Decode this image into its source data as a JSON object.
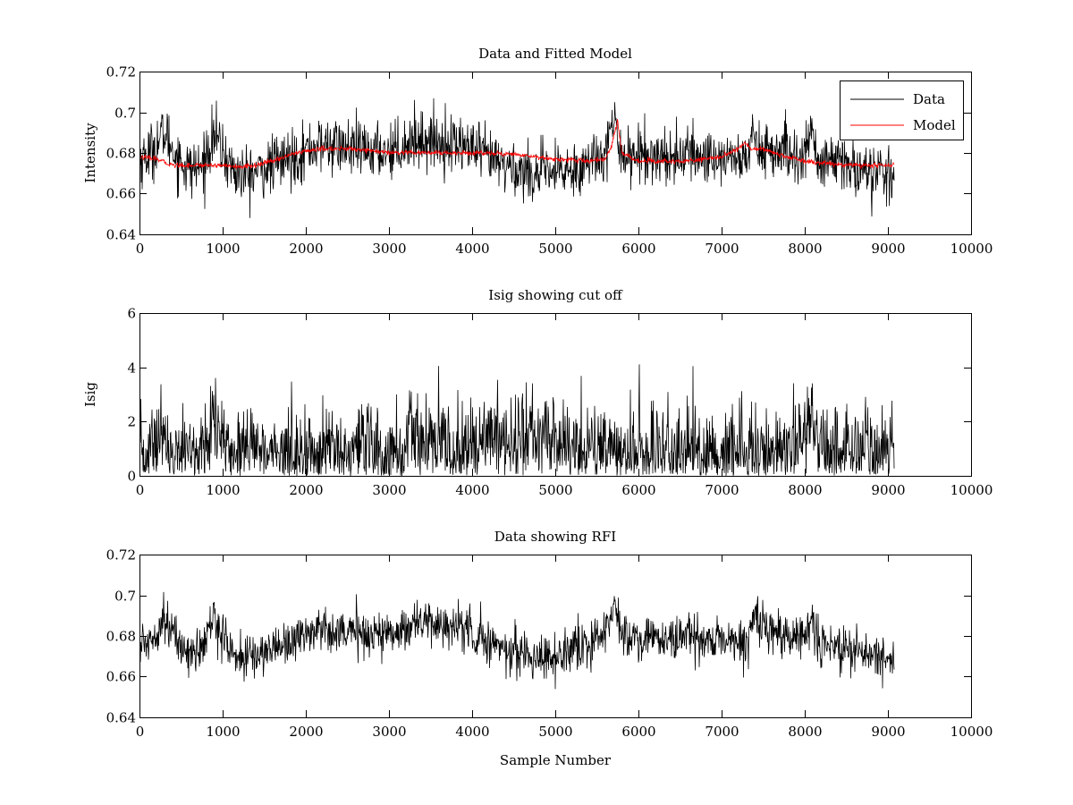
{
  "chart_data": [
    {
      "type": "line",
      "title": "Data and Fitted Model",
      "xlabel": "",
      "ylabel": "Intensity",
      "xlim": [
        0,
        10000
      ],
      "ylim": [
        0.64,
        0.72
      ],
      "xticks": [
        "0",
        "1000",
        "2000",
        "3000",
        "4000",
        "5000",
        "6000",
        "7000",
        "8000",
        "9000",
        "10000"
      ],
      "yticks": [
        "0.64",
        "0.66",
        "0.68",
        "0.7",
        "0.72"
      ],
      "grid": false,
      "legend": {
        "position": "top-right",
        "entries": [
          "Data",
          "Model"
        ]
      },
      "series": [
        {
          "name": "Data",
          "color": "#000000",
          "noise": 0.007,
          "x": [
            0,
            150,
            300,
            450,
            600,
            750,
            900,
            1000,
            1150,
            1300,
            1500,
            1700,
            1900,
            2100,
            2300,
            2500,
            2700,
            2900,
            3100,
            3300,
            3500,
            3700,
            3900,
            4000,
            4200,
            4400,
            4600,
            4800,
            5000,
            5200,
            5400,
            5550,
            5650,
            5730,
            5800,
            5900,
            6000,
            6200,
            6400,
            6600,
            6800,
            7000,
            7200,
            7300,
            7380,
            7450,
            7600,
            7800,
            8000,
            8080,
            8150,
            8300,
            8500,
            8700,
            8900,
            9080
          ],
          "y": [
            0.676,
            0.681,
            0.69,
            0.678,
            0.672,
            0.673,
            0.69,
            0.68,
            0.67,
            0.669,
            0.672,
            0.676,
            0.679,
            0.683,
            0.684,
            0.682,
            0.681,
            0.681,
            0.682,
            0.687,
            0.686,
            0.685,
            0.684,
            0.682,
            0.677,
            0.674,
            0.671,
            0.67,
            0.67,
            0.672,
            0.675,
            0.68,
            0.688,
            0.694,
            0.68,
            0.679,
            0.679,
            0.679,
            0.678,
            0.679,
            0.678,
            0.678,
            0.678,
            0.675,
            0.69,
            0.683,
            0.681,
            0.679,
            0.678,
            0.692,
            0.676,
            0.675,
            0.674,
            0.672,
            0.67,
            0.667
          ]
        },
        {
          "name": "Model",
          "color": "#ff0000",
          "noise": 0.0006,
          "x": [
            0,
            200,
            400,
            600,
            800,
            1000,
            1200,
            1400,
            1600,
            1800,
            2000,
            2200,
            2400,
            2600,
            2800,
            3000,
            3400,
            3800,
            4200,
            4600,
            5000,
            5400,
            5600,
            5680,
            5750,
            5800,
            5900,
            6000,
            6200,
            6400,
            6600,
            6800,
            7000,
            7200,
            7280,
            7350,
            7500,
            7700,
            7900,
            8000,
            8200,
            8500,
            8800,
            9080
          ],
          "y": [
            0.678,
            0.677,
            0.674,
            0.674,
            0.674,
            0.674,
            0.673,
            0.674,
            0.676,
            0.679,
            0.681,
            0.682,
            0.682,
            0.682,
            0.681,
            0.68,
            0.68,
            0.68,
            0.68,
            0.679,
            0.677,
            0.676,
            0.677,
            0.684,
            0.696,
            0.68,
            0.678,
            0.676,
            0.676,
            0.676,
            0.676,
            0.677,
            0.678,
            0.682,
            0.685,
            0.682,
            0.682,
            0.679,
            0.677,
            0.676,
            0.675,
            0.674,
            0.674,
            0.674
          ]
        }
      ]
    },
    {
      "type": "line",
      "title": "Isig showing cut off",
      "xlabel": "",
      "ylabel": "Isig",
      "xlim": [
        0,
        10000
      ],
      "ylim": [
        0,
        6
      ],
      "xticks": [
        "0",
        "1000",
        "2000",
        "3000",
        "4000",
        "5000",
        "6000",
        "7000",
        "8000",
        "9000",
        "10000"
      ],
      "yticks": [
        "0",
        "2",
        "4",
        "6"
      ],
      "grid": false,
      "series": [
        {
          "name": "",
          "color": "#000000",
          "noise": 0.9,
          "rectify": true,
          "x": [
            0,
            150,
            300,
            350,
            450,
            600,
            800,
            900,
            1000,
            1100,
            1300,
            1600,
            2000,
            2400,
            2800,
            3200,
            3300,
            3500,
            3700,
            3900,
            4200,
            4500,
            4700,
            4900,
            5100,
            5400,
            5700,
            6000,
            6500,
            7000,
            7300,
            7600,
            8000,
            8080,
            8150,
            8500,
            9080
          ],
          "y": [
            0.7,
            0.9,
            2.0,
            0.2,
            0.7,
            0.7,
            0.8,
            2.0,
            1.2,
            0.8,
            0.9,
            0.8,
            0.7,
            0.8,
            0.8,
            0.9,
            1.5,
            1.2,
            1.0,
            1.0,
            1.2,
            1.4,
            1.5,
            1.4,
            1.2,
            0.9,
            0.7,
            0.7,
            0.7,
            0.7,
            0.9,
            0.9,
            1.0,
            3.0,
            1.0,
            0.9,
            0.8
          ]
        }
      ]
    },
    {
      "type": "line",
      "title": "Data showing RFI",
      "xlabel": "Sample Number",
      "ylabel": "",
      "xlim": [
        0,
        10000
      ],
      "ylim": [
        0.64,
        0.72
      ],
      "xticks": [
        "0",
        "1000",
        "2000",
        "3000",
        "4000",
        "5000",
        "6000",
        "7000",
        "8000",
        "9000",
        "10000"
      ],
      "yticks": [
        "0.64",
        "0.66",
        "0.68",
        "0.7",
        "0.72"
      ],
      "grid": false,
      "series": [
        {
          "name": "",
          "color": "#000000",
          "noise": 0.0055,
          "x": [
            0,
            150,
            300,
            450,
            600,
            750,
            900,
            1000,
            1150,
            1300,
            1500,
            1700,
            1900,
            2100,
            2300,
            2500,
            2700,
            2900,
            3100,
            3300,
            3500,
            3700,
            3900,
            4000,
            4200,
            4400,
            4600,
            4800,
            5000,
            5200,
            5400,
            5550,
            5650,
            5730,
            5800,
            5900,
            6000,
            6200,
            6400,
            6600,
            6800,
            7000,
            7200,
            7300,
            7380,
            7450,
            7600,
            7800,
            8000,
            8080,
            8150,
            8300,
            8500,
            8700,
            8900,
            9080
          ],
          "y": [
            0.674,
            0.679,
            0.69,
            0.677,
            0.672,
            0.673,
            0.69,
            0.68,
            0.67,
            0.669,
            0.672,
            0.676,
            0.679,
            0.683,
            0.684,
            0.682,
            0.681,
            0.681,
            0.682,
            0.687,
            0.686,
            0.685,
            0.684,
            0.682,
            0.677,
            0.674,
            0.671,
            0.67,
            0.67,
            0.672,
            0.675,
            0.68,
            0.688,
            0.694,
            0.68,
            0.679,
            0.679,
            0.679,
            0.678,
            0.679,
            0.678,
            0.678,
            0.678,
            0.675,
            0.69,
            0.683,
            0.681,
            0.679,
            0.678,
            0.692,
            0.676,
            0.675,
            0.674,
            0.672,
            0.67,
            0.668
          ]
        }
      ]
    }
  ]
}
